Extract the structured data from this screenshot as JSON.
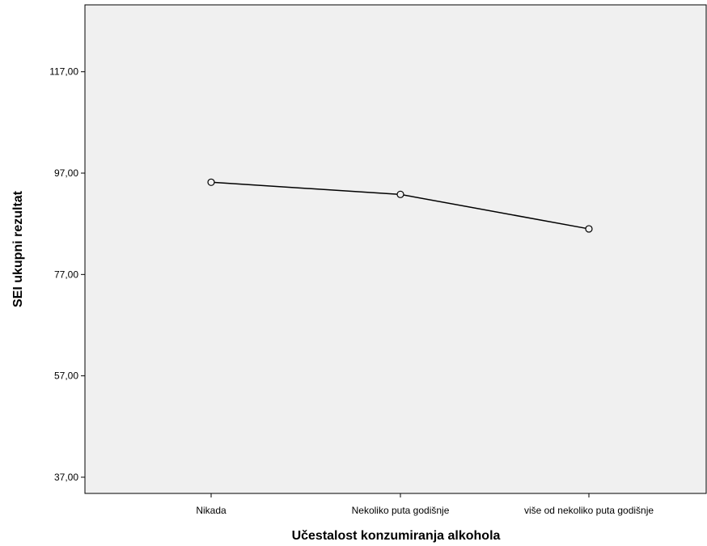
{
  "chart_data": {
    "type": "line",
    "title": "",
    "xlabel": "Učestalost konzumiranja alkohola",
    "ylabel": "SEI ukupni rezultat",
    "categories": [
      "Nikada",
      "Nekoliko puta godišnje",
      "više od nekoliko puta godišnje"
    ],
    "series": [
      {
        "values": [
          95.2,
          92.8,
          86.0
        ]
      }
    ],
    "ylim": [
      33.8,
      130.2
    ],
    "yticks": [
      37,
      57,
      77,
      97,
      117
    ],
    "ytick_labels": [
      "37,00",
      "57,00",
      "77,00",
      "97,00",
      "117,00"
    ],
    "grid": false,
    "legend": "none",
    "colors": {
      "plot_background": "#f0f0f0",
      "line": "#000000",
      "marker_fill": "#f0f0f0"
    }
  }
}
